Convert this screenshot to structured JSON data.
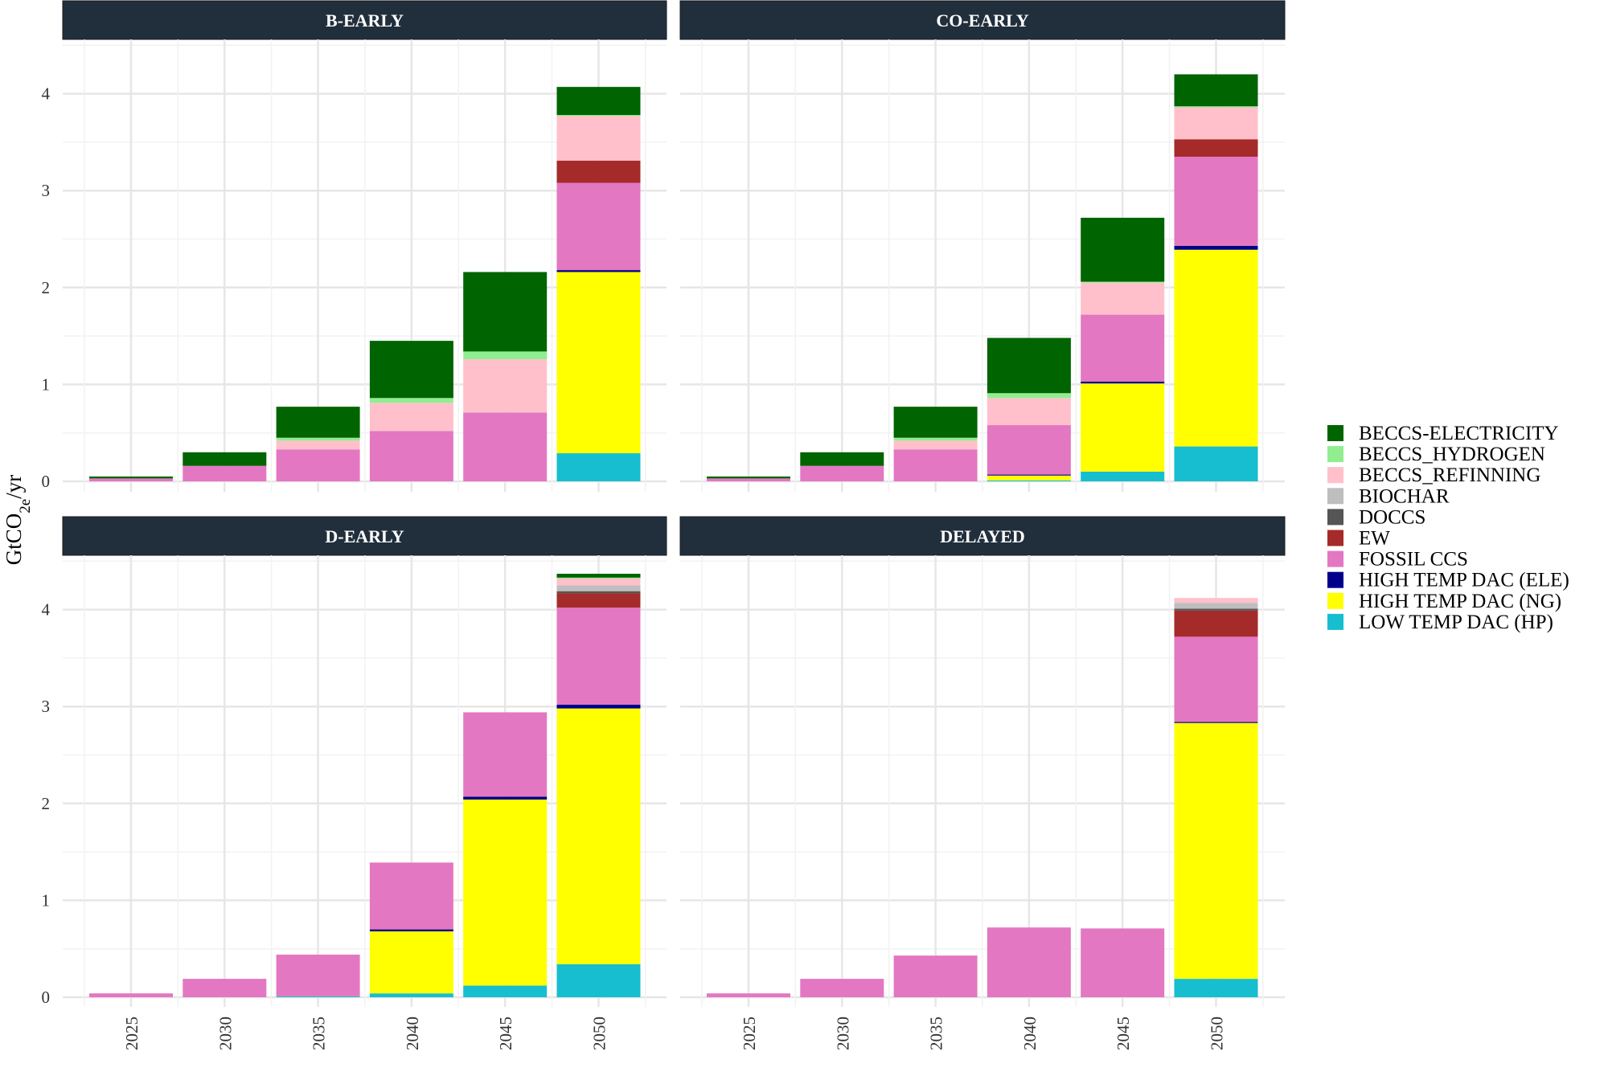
{
  "chart_data": {
    "type": "bar",
    "stacked": true,
    "ylabel": {
      "main": "GtCO",
      "sub": "2e",
      "suffix": "/yr"
    },
    "x": [
      "2025",
      "2030",
      "2035",
      "2040",
      "2045",
      "2050"
    ],
    "ylim": [
      0,
      4.5
    ],
    "yticks": [
      0,
      1,
      2,
      3,
      4
    ],
    "grid": true,
    "legend_position": "right",
    "series": [
      {
        "name": "BECCS-ELECTRICITY",
        "color": "#006400"
      },
      {
        "name": "BECCS_HYDROGEN",
        "color": "#90EE90"
      },
      {
        "name": "BECCS_REFINNING",
        "color": "#FFC0CB"
      },
      {
        "name": "BIOCHAR",
        "color": "#BEBEBE"
      },
      {
        "name": "DOCCS",
        "color": "#555555"
      },
      {
        "name": "EW",
        "color": "#A52A2A"
      },
      {
        "name": "FOSSIL CCS",
        "color": "#E377C2"
      },
      {
        "name": "HIGH TEMP DAC (ELE)",
        "color": "#00008B"
      },
      {
        "name": "HIGH TEMP DAC (NG)",
        "color": "#FFFF00"
      },
      {
        "name": "LOW TEMP DAC (HP)",
        "color": "#17BECF"
      }
    ],
    "stack_order": [
      "LOW TEMP DAC (HP)",
      "HIGH TEMP DAC (NG)",
      "HIGH TEMP DAC (ELE)",
      "FOSSIL CCS",
      "EW",
      "DOCCS",
      "BIOCHAR",
      "BECCS_REFINNING",
      "BECCS_HYDROGEN",
      "BECCS-ELECTRICITY"
    ],
    "panels": [
      {
        "title": "B-EARLY",
        "values": {
          "LOW TEMP DAC (HP)": [
            0,
            0,
            0,
            0,
            0,
            0.29
          ],
          "HIGH TEMP DAC (NG)": [
            0,
            0,
            0,
            0,
            0,
            1.87
          ],
          "HIGH TEMP DAC (ELE)": [
            0,
            0,
            0,
            0,
            0,
            0.02
          ],
          "FOSSIL CCS": [
            0.03,
            0.16,
            0.33,
            0.52,
            0.71,
            0.9
          ],
          "EW": [
            0,
            0,
            0,
            0,
            0,
            0.23
          ],
          "DOCCS": [
            0,
            0,
            0,
            0,
            0,
            0
          ],
          "BIOCHAR": [
            0,
            0,
            0,
            0,
            0,
            0
          ],
          "BECCS_REFINNING": [
            0,
            0,
            0.09,
            0.29,
            0.55,
            0.46
          ],
          "BECCS_HYDROGEN": [
            0,
            0,
            0.03,
            0.05,
            0.08,
            0.01
          ],
          "BECCS-ELECTRICITY": [
            0.02,
            0.14,
            0.32,
            0.59,
            0.82,
            0.29
          ]
        }
      },
      {
        "title": "CO-EARLY",
        "values": {
          "LOW TEMP DAC (HP)": [
            0,
            0,
            0,
            0.01,
            0.1,
            0.36
          ],
          "HIGH TEMP DAC (NG)": [
            0,
            0,
            0,
            0.05,
            0.91,
            2.03
          ],
          "HIGH TEMP DAC (ELE)": [
            0,
            0,
            0,
            0.01,
            0.02,
            0.04
          ],
          "FOSSIL CCS": [
            0.03,
            0.16,
            0.33,
            0.51,
            0.69,
            0.92
          ],
          "EW": [
            0,
            0,
            0,
            0,
            0,
            0.18
          ],
          "DOCCS": [
            0,
            0,
            0,
            0,
            0,
            0
          ],
          "BIOCHAR": [
            0,
            0,
            0,
            0,
            0,
            0
          ],
          "BECCS_REFINNING": [
            0,
            0,
            0.09,
            0.28,
            0.33,
            0.33
          ],
          "BECCS_HYDROGEN": [
            0,
            0,
            0.03,
            0.05,
            0.01,
            0.01
          ],
          "BECCS-ELECTRICITY": [
            0.02,
            0.14,
            0.32,
            0.57,
            0.66,
            0.33
          ]
        }
      },
      {
        "title": "D-EARLY",
        "values": {
          "LOW TEMP DAC (HP)": [
            0,
            0,
            0.01,
            0.04,
            0.12,
            0.34
          ],
          "HIGH TEMP DAC (NG)": [
            0,
            0,
            0,
            0.64,
            1.92,
            2.64
          ],
          "HIGH TEMP DAC (ELE)": [
            0,
            0,
            0,
            0.02,
            0.03,
            0.04
          ],
          "FOSSIL CCS": [
            0.04,
            0.19,
            0.43,
            0.69,
            0.87,
            1.0
          ],
          "EW": [
            0,
            0,
            0,
            0,
            0,
            0.15
          ],
          "DOCCS": [
            0,
            0,
            0,
            0,
            0,
            0.02
          ],
          "BIOCHAR": [
            0,
            0,
            0,
            0,
            0,
            0.06
          ],
          "BECCS_REFINNING": [
            0,
            0,
            0,
            0,
            0,
            0.07
          ],
          "BECCS_HYDROGEN": [
            0,
            0,
            0,
            0,
            0,
            0.01
          ],
          "BECCS-ELECTRICITY": [
            0,
            0,
            0,
            0,
            0,
            0.04
          ]
        }
      },
      {
        "title": "DELAYED",
        "values": {
          "LOW TEMP DAC (HP)": [
            0,
            0,
            0,
            0,
            0,
            0.19
          ],
          "HIGH TEMP DAC (NG)": [
            0,
            0,
            0,
            0,
            0,
            2.64
          ],
          "HIGH TEMP DAC (ELE)": [
            0,
            0,
            0,
            0,
            0,
            0.01
          ],
          "FOSSIL CCS": [
            0.04,
            0.19,
            0.43,
            0.72,
            0.71,
            0.88
          ],
          "EW": [
            0,
            0,
            0,
            0,
            0,
            0.27
          ],
          "DOCCS": [
            0,
            0,
            0,
            0,
            0,
            0.02
          ],
          "BIOCHAR": [
            0,
            0,
            0,
            0,
            0,
            0.06
          ],
          "BECCS_REFINNING": [
            0,
            0,
            0,
            0,
            0,
            0.05
          ],
          "BECCS_HYDROGEN": [
            0,
            0,
            0,
            0,
            0,
            0
          ],
          "BECCS-ELECTRICITY": [
            0,
            0,
            0,
            0,
            0,
            0
          ]
        }
      }
    ]
  }
}
